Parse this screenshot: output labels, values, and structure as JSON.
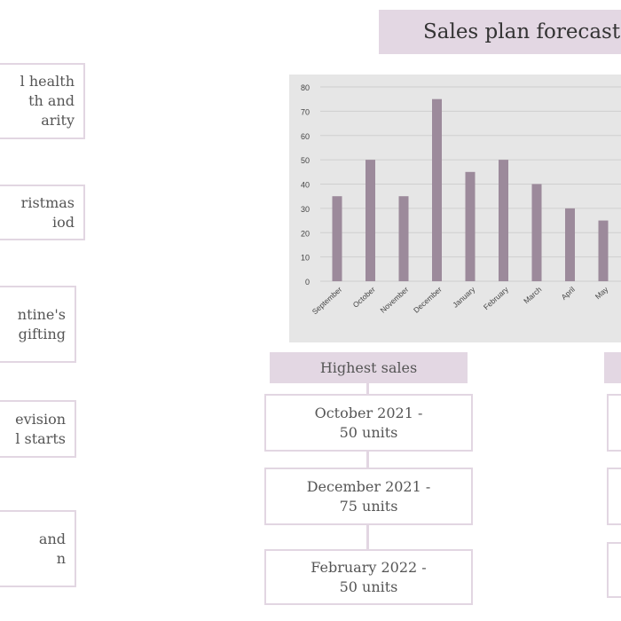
{
  "title": "Sales plan forecast",
  "left_boxes": [
    "l health\nth and\narity",
    "ristmas\niod",
    "ntine's\ngifting",
    "evision\nl starts",
    "and\nn"
  ],
  "highest_sales": {
    "label": "Highest sales",
    "items": [
      "October 2021 -\n50 units",
      "December 2021 -\n75 units",
      "February 2022  -\n50 units"
    ]
  },
  "chart_data": {
    "type": "bar",
    "categories": [
      "September",
      "October",
      "November",
      "December",
      "January",
      "February",
      "March",
      "April",
      "May"
    ],
    "values": [
      35,
      50,
      35,
      75,
      45,
      50,
      40,
      30,
      25
    ],
    "yticks": [
      0,
      10,
      20,
      30,
      40,
      50,
      60,
      70,
      80
    ],
    "ylim": [
      0,
      80
    ],
    "grid": true,
    "colors": {
      "bar": "#9c8a9b",
      "plot_bg": "#e6e6e6",
      "grid": "#cfcfcf"
    }
  }
}
